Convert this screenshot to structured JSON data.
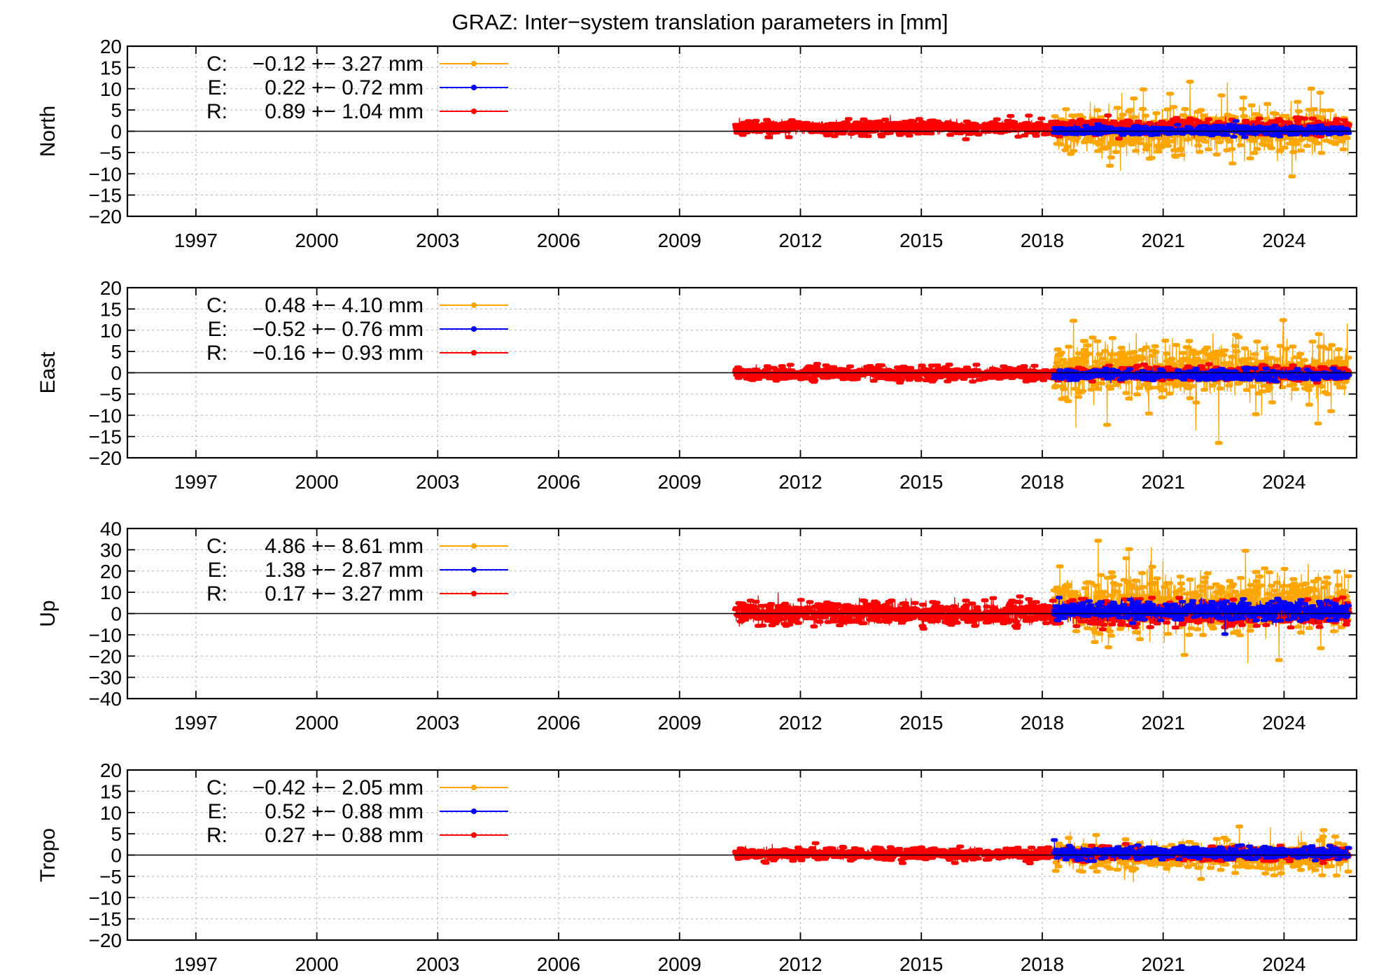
{
  "figure": {
    "title": "GRAZ: Inter−system translation parameters in [mm]"
  },
  "chart_data": [
    {
      "type": "line",
      "ylabel": "North",
      "xlim": [
        1995.3,
        2025.8
      ],
      "ylim": [
        -20,
        20
      ],
      "xticks": [
        1997,
        2000,
        2003,
        2006,
        2009,
        2012,
        2015,
        2018,
        2021,
        2024
      ],
      "yticks": [
        -20,
        -15,
        -10,
        -5,
        0,
        5,
        10,
        15,
        20
      ],
      "grid": true,
      "legend_position": "top-left",
      "series": [
        {
          "key": "C",
          "label": "C:",
          "stats": "−0.12 +− 3.27 mm",
          "color": "#FFA500",
          "start": 2018.3,
          "end": 2025.6,
          "mean": -0.12,
          "sigma": 3.27
        },
        {
          "key": "E",
          "label": "E:",
          "stats": "0.22 +− 0.72 mm",
          "color": "#0000FF",
          "start": 2018.3,
          "end": 2025.6,
          "mean": 0.22,
          "sigma": 0.72
        },
        {
          "key": "R",
          "label": "R:",
          "stats": "0.89 +− 1.04 mm",
          "color": "#FF0000",
          "start": 2010.4,
          "end": 2025.6,
          "mean": 0.89,
          "sigma": 1.04
        }
      ]
    },
    {
      "type": "line",
      "ylabel": "East",
      "xlim": [
        1995.3,
        2025.8
      ],
      "ylim": [
        -20,
        20
      ],
      "xticks": [
        1997,
        2000,
        2003,
        2006,
        2009,
        2012,
        2015,
        2018,
        2021,
        2024
      ],
      "yticks": [
        -20,
        -15,
        -10,
        -5,
        0,
        5,
        10,
        15,
        20
      ],
      "grid": true,
      "legend_position": "top-left",
      "series": [
        {
          "key": "C",
          "label": "C:",
          "stats": "0.48 +− 4.10 mm",
          "color": "#FFA500",
          "start": 2018.3,
          "end": 2025.6,
          "mean": 0.48,
          "sigma": 4.1
        },
        {
          "key": "E",
          "label": "E:",
          "stats": "−0.52 +− 0.76 mm",
          "color": "#0000FF",
          "start": 2018.3,
          "end": 2025.6,
          "mean": -0.52,
          "sigma": 0.76
        },
        {
          "key": "R",
          "label": "R:",
          "stats": "−0.16 +− 0.93 mm",
          "color": "#FF0000",
          "start": 2010.4,
          "end": 2025.6,
          "mean": -0.16,
          "sigma": 0.93
        }
      ]
    },
    {
      "type": "line",
      "ylabel": "Up",
      "xlim": [
        1995.3,
        2025.8
      ],
      "ylim": [
        -40,
        40
      ],
      "xticks": [
        1997,
        2000,
        2003,
        2006,
        2009,
        2012,
        2015,
        2018,
        2021,
        2024
      ],
      "yticks": [
        -40,
        -30,
        -20,
        -10,
        0,
        10,
        20,
        30,
        40
      ],
      "grid": true,
      "legend_position": "top-left",
      "series": [
        {
          "key": "C",
          "label": "C:",
          "stats": "4.86 +− 8.61 mm",
          "color": "#FFA500",
          "start": 2018.3,
          "end": 2025.6,
          "mean": 4.86,
          "sigma": 8.61
        },
        {
          "key": "E",
          "label": "E:",
          "stats": "1.38 +− 2.87 mm",
          "color": "#0000FF",
          "start": 2018.3,
          "end": 2025.6,
          "mean": 1.38,
          "sigma": 2.87
        },
        {
          "key": "R",
          "label": "R:",
          "stats": "0.17 +− 3.27 mm",
          "color": "#FF0000",
          "start": 2010.4,
          "end": 2025.6,
          "mean": 0.17,
          "sigma": 3.27
        }
      ]
    },
    {
      "type": "line",
      "ylabel": "Tropo",
      "xlim": [
        1995.3,
        2025.8
      ],
      "ylim": [
        -20,
        20
      ],
      "xticks": [
        1997,
        2000,
        2003,
        2006,
        2009,
        2012,
        2015,
        2018,
        2021,
        2024
      ],
      "yticks": [
        -20,
        -15,
        -10,
        -5,
        0,
        5,
        10,
        15,
        20
      ],
      "grid": true,
      "legend_position": "top-left",
      "series": [
        {
          "key": "C",
          "label": "C:",
          "stats": "−0.42 +− 2.05 mm",
          "color": "#FFA500",
          "start": 2018.3,
          "end": 2025.6,
          "mean": -0.42,
          "sigma": 2.05
        },
        {
          "key": "E",
          "label": "E:",
          "stats": "0.52 +− 0.88 mm",
          "color": "#0000FF",
          "start": 2018.3,
          "end": 2025.6,
          "mean": 0.52,
          "sigma": 0.88
        },
        {
          "key": "R",
          "label": "R:",
          "stats": "0.27 +− 0.88 mm",
          "color": "#FF0000",
          "start": 2010.4,
          "end": 2025.6,
          "mean": 0.27,
          "sigma": 0.88
        }
      ]
    }
  ]
}
